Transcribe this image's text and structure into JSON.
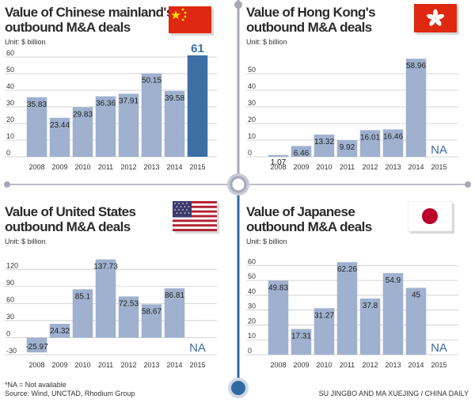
{
  "colors": {
    "bar": "#9fb1cf",
    "highlight_bar": "#3d6ea4",
    "grid": "#c9c9c9",
    "title": "#2b2b2b",
    "divider_gray": "#a6a9b5",
    "divider_blue": "#2f6aa3"
  },
  "panels": [
    {
      "title_line1": "Value of Chinese mainland's",
      "title_line2": "outbound M&A deals",
      "unit": "Unit: $ billion",
      "flag_icon": "china-flag-icon"
    },
    {
      "title_line1": "Value of Hong Kong's",
      "title_line2": "outbound M&A deals",
      "unit": "Unit: $ billion",
      "flag_icon": "hong-kong-flag-icon"
    },
    {
      "title_line1": "Value of United States",
      "title_line2": "outbound M&A deals",
      "unit": "Unit: $ billion",
      "flag_icon": "us-flag-icon"
    },
    {
      "title_line1": "Value of Japanese",
      "title_line2": "outbound M&A deals",
      "unit": "Unit: $ billion",
      "flag_icon": "japan-flag-icon"
    }
  ],
  "chart_data": [
    {
      "type": "bar",
      "title": "Value of Chinese mainland's outbound M&A deals",
      "categories": [
        "2008",
        "2009",
        "2010",
        "2011",
        "2012",
        "2013",
        "2014",
        "2015"
      ],
      "values": [
        35.83,
        23.44,
        29.83,
        36.36,
        37.91,
        50.15,
        39.58,
        61
      ],
      "labels": [
        "35.83",
        "23.44",
        "29.83",
        "36.36",
        "37.91",
        "50.15",
        "39.58",
        "61"
      ],
      "highlight_index": 7,
      "ylim": [
        0,
        60
      ],
      "yticks": [
        0,
        10,
        20,
        30,
        40,
        50,
        60
      ],
      "grid": true
    },
    {
      "type": "bar",
      "title": "Value of Hong Kong's outbound M&A deals",
      "categories": [
        "2008",
        "2009",
        "2010",
        "2011",
        "2012",
        "2013",
        "2014",
        "2015"
      ],
      "values": [
        1.07,
        6.46,
        13.32,
        9.92,
        16.01,
        16.46,
        58.96,
        null
      ],
      "labels": [
        "1.07",
        "6.46",
        "13.32",
        "9.92",
        "16.01",
        "16.46",
        "58.96",
        "NA"
      ],
      "ylim": [
        0,
        60
      ],
      "yticks": [
        0,
        10,
        20,
        30,
        40,
        50
      ],
      "grid": true
    },
    {
      "type": "bar",
      "title": "Value of United States outbound M&A deals",
      "categories": [
        "2008",
        "2009",
        "2010",
        "2011",
        "2012",
        "2013",
        "2014",
        "2015"
      ],
      "values": [
        -25.97,
        24.32,
        85.1,
        137.73,
        72.53,
        58.67,
        86.81,
        null
      ],
      "labels": [
        "-25.97",
        "24.32",
        "85.1",
        "137.73",
        "72.53",
        "58.67",
        "86.81",
        "NA"
      ],
      "ylim": [
        -30,
        140
      ],
      "yticks": [
        -30,
        0,
        30,
        60,
        90,
        120
      ],
      "grid": true
    },
    {
      "type": "bar",
      "title": "Value of Japanese outbound M&A deals",
      "categories": [
        "2008",
        "2009",
        "2010",
        "2011",
        "2012",
        "2013",
        "2014",
        "2015"
      ],
      "values": [
        49.83,
        17.31,
        31.27,
        62.26,
        37.8,
        54.9,
        45,
        null
      ],
      "labels": [
        "49.83",
        "17.31",
        "31.27",
        "62.26",
        "37.8",
        "54.9",
        "45",
        "NA"
      ],
      "ylim": [
        0,
        65
      ],
      "yticks": [
        0,
        10,
        20,
        30,
        40,
        50,
        60
      ],
      "grid": true
    }
  ],
  "footer": {
    "note": "*NA = Not available",
    "source": "Source: Wind, UNCTAD, Rhodium Group",
    "credit": "SU JINGBO AND MA XUEJING / CHINA DAILY"
  }
}
